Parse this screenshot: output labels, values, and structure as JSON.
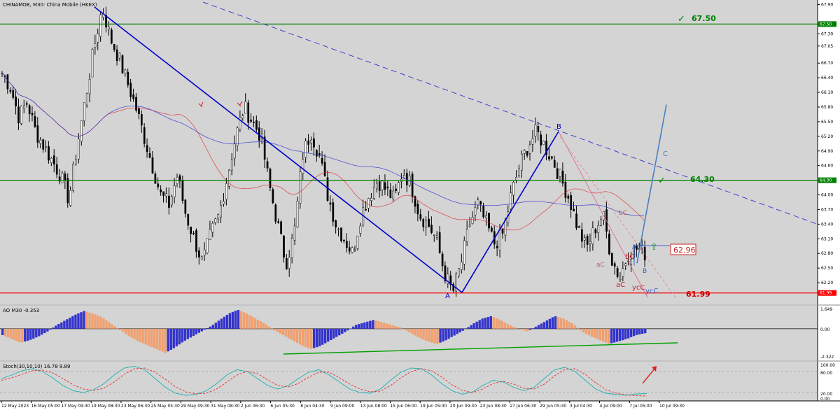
{
  "main_panel": {
    "title": "CHINAMOB, M30:  China Mobile (HKEX)"
  },
  "ao_panel": {
    "title": "AO M30  -0.353",
    "axis_ticks": [
      "1.649",
      "0.00",
      "-2.322"
    ]
  },
  "stoch_panel": {
    "title": "Stoch(30,10,10) 16.78 9.89",
    "axis_ticks": [
      "100.00",
      "80.00",
      "20.00",
      "0.00"
    ]
  },
  "colors": {
    "background": "#ffffff",
    "plot_bg": "#d4d4d4",
    "bull_candle": "#ffffff",
    "bear_candle": "#000000",
    "wave_line": "#0000cc",
    "channel_line": "#4040cc",
    "forecast_line": "#4a7fbf",
    "resistance_line": "#008000",
    "support_line": "#ff0000",
    "ma_red": "#e03030",
    "ma_blue": "#3030d0",
    "ao_up": "#3333cc",
    "ao_down": "#f0a070",
    "stoch_main": "#20b0b0",
    "stoch_signal": "#e03030",
    "annotation_red": "#cc3344",
    "annotation_blue": "#3366cc"
  },
  "annotations": {
    "level_6750": "67.50",
    "level_6430": "64.30",
    "level_6296": "62.96",
    "level_6199": "61.99",
    "wave_A1": "A",
    "wave_B1": "B",
    "wave_C": "C",
    "wave_A2": "A",
    "wave_B2": "B",
    "wave_aC_1": "aC",
    "wave_bC_1": "bC",
    "wave_aC_2": "aC",
    "wave_bC_2": "bC",
    "wave_ycC_red": "ycC",
    "wave_ycC_blue": "ycC",
    "check_mark": "✓",
    "arrow_up": "⇧"
  },
  "chart_data": [
    {
      "type": "candlestick",
      "title": "CHINAMOB, M30:  China Mobile (HKEX)",
      "price_axis_ticks": [
        "67.90",
        "67.50",
        "67.30",
        "67.05",
        "66.70",
        "66.40",
        "66.10",
        "65.80",
        "65.50",
        "65.20",
        "64.90",
        "64.60",
        "64.30",
        "64.00",
        "63.70",
        "63.40",
        "63.10",
        "62.80",
        "62.50",
        "62.20",
        "61.99"
      ],
      "x_axis_labels": [
        "12 May 2023",
        "16 May 05:00",
        "17 May 09:30",
        "19 May 08:30",
        "23 May 06:30",
        "25 May 05:30",
        "29 May 09:30",
        "31 May 08:30",
        "2 Jun 06:30",
        "6 Jun 05:30",
        "8 Jun 04:30",
        "9 Jun 09:00",
        "13 Jun 08:00",
        "15 Jun 06:00",
        "19 Jun 05:00",
        "20 Jun 09:30",
        "23 Jun 08:30",
        "27 Jun 06:30",
        "29 Jun 05:30",
        "3 Jul 04:30",
        "4 Jul 09:00",
        "7 Jul 05:00",
        "10 Jul 09:30"
      ],
      "ylim": [
        61.8,
        67.95
      ],
      "horizontal_levels": [
        {
          "name": "resistance",
          "value": 67.5
        },
        {
          "name": "resistance",
          "value": 64.3
        },
        {
          "name": "support",
          "value": 61.99
        }
      ],
      "wave_points": [
        {
          "label": "start",
          "price": 67.85
        },
        {
          "label": "A",
          "price": 62.0
        },
        {
          "label": "B",
          "price": 65.3
        },
        {
          "label": "C-target",
          "price": 65.85
        }
      ],
      "price_path": [
        66.5,
        66.2,
        65.6,
        65.9,
        65.3,
        65.0,
        64.7,
        64.4,
        63.9,
        65.0,
        66.0,
        67.0,
        67.85,
        67.2,
        66.8,
        66.3,
        65.8,
        65.2,
        64.6,
        64.0,
        63.8,
        64.4,
        63.6,
        63.1,
        62.6,
        63.2,
        63.6,
        64.4,
        65.2,
        65.8,
        65.5,
        65.2,
        64.2,
        63.4,
        62.6,
        63.2,
        64.8,
        65.3,
        64.8,
        64.0,
        63.4,
        63.1,
        62.8,
        63.6,
        64.0,
        64.3,
        64.1,
        63.9,
        64.5,
        64.2,
        63.6,
        63.4,
        63.1,
        62.4,
        62.0,
        62.6,
        63.4,
        63.8,
        63.4,
        63.0,
        63.2,
        64.0,
        64.6,
        65.0,
        65.3,
        65.0,
        64.7,
        64.3,
        63.9,
        63.3,
        62.9,
        63.3,
        63.6,
        62.7,
        62.3,
        62.8,
        62.9,
        62.8
      ]
    },
    {
      "type": "bar",
      "title": "AO M30",
      "current_value": -0.353,
      "ylim": [
        -2.322,
        1.649
      ],
      "values": [
        -0.5,
        -0.8,
        -1.1,
        -0.9,
        -0.6,
        -0.2,
        0.3,
        0.7,
        1.1,
        1.4,
        1.2,
        0.9,
        0.4,
        -0.1,
        -0.6,
        -1.0,
        -1.3,
        -1.6,
        -1.9,
        -1.5,
        -1.0,
        -0.6,
        -0.2,
        0.2,
        0.7,
        1.2,
        1.5,
        1.2,
        0.8,
        0.4,
        -0.1,
        -0.5,
        -0.9,
        -1.3,
        -1.6,
        -1.4,
        -1.0,
        -0.6,
        -0.2,
        0.3,
        0.5,
        0.7,
        0.5,
        0.3,
        0.1,
        -0.3,
        -0.7,
        -1.0,
        -1.2,
        -0.9,
        -0.5,
        -0.1,
        0.4,
        0.8,
        1.0,
        0.7,
        0.3,
        0.0,
        -0.2,
        0.2,
        0.6,
        1.0,
        0.8,
        0.4,
        -0.2,
        -0.6,
        -0.9,
        -1.2,
        -1.0,
        -0.8,
        -0.5,
        -0.35
      ]
    },
    {
      "type": "line",
      "title": "Stoch(30,10,10)",
      "current_values": {
        "main": 16.78,
        "signal": 9.89
      },
      "ylim": [
        0,
        100
      ],
      "series": [
        {
          "name": "main",
          "values": [
            60,
            70,
            82,
            88,
            80,
            62,
            40,
            25,
            20,
            28,
            45,
            70,
            90,
            95,
            85,
            60,
            35,
            18,
            12,
            15,
            25,
            45,
            70,
            85,
            80,
            60,
            40,
            30,
            40,
            60,
            78,
            85,
            70,
            50,
            30,
            20,
            18,
            30,
            55,
            78,
            90,
            88,
            70,
            45,
            25,
            15,
            22,
            40,
            55,
            50,
            35,
            25,
            35,
            60,
            85,
            92,
            80,
            55,
            30,
            18,
            14,
            12,
            16,
            17
          ]
        },
        {
          "name": "signal",
          "values": [
            55,
            62,
            72,
            82,
            84,
            76,
            60,
            42,
            30,
            26,
            32,
            50,
            72,
            88,
            90,
            78,
            58,
            36,
            22,
            16,
            18,
            30,
            50,
            70,
            80,
            74,
            56,
            40,
            36,
            46,
            64,
            78,
            78,
            62,
            44,
            30,
            22,
            24,
            40,
            62,
            80,
            88,
            82,
            64,
            42,
            26,
            20,
            30,
            46,
            52,
            44,
            32,
            30,
            44,
            68,
            86,
            88,
            72,
            48,
            28,
            18,
            13,
            11,
            10
          ]
        }
      ]
    }
  ]
}
